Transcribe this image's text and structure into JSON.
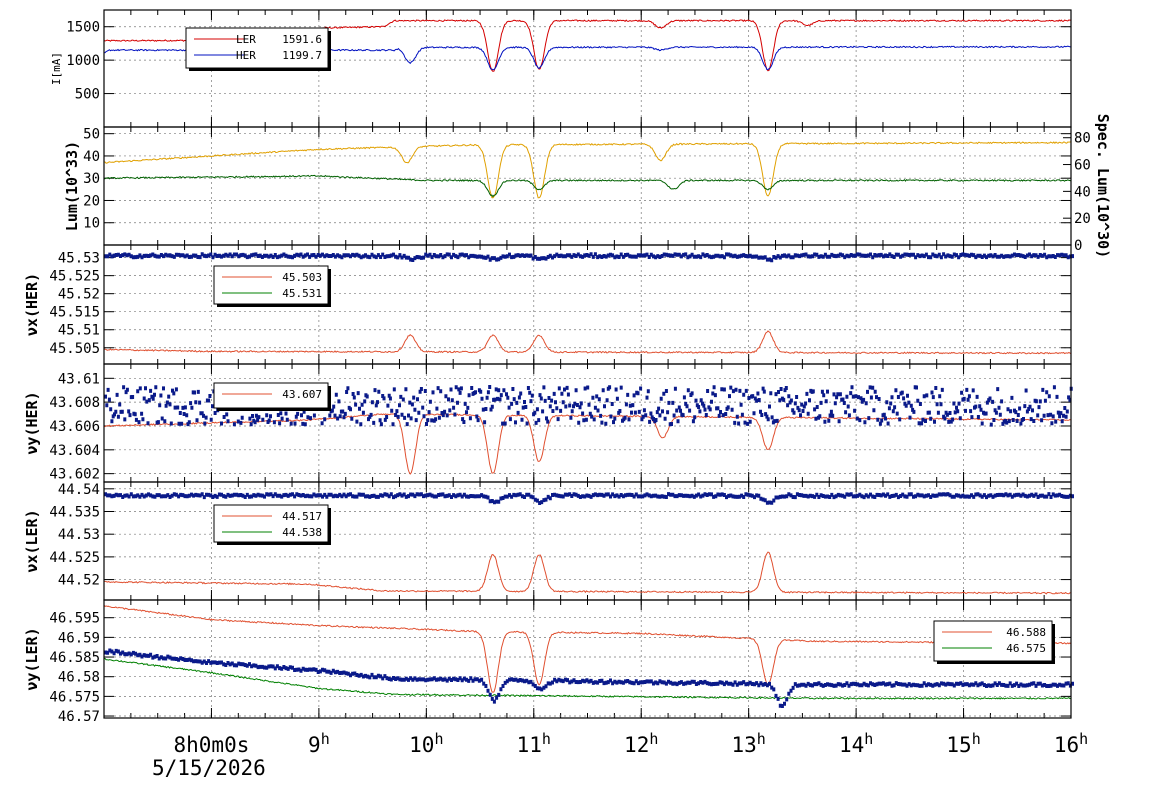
{
  "chart_data": [
    {
      "type": "line",
      "ylabel": "I[mA]",
      "ylim": [
        0,
        1750
      ],
      "yticks": [
        500,
        1000,
        1500
      ],
      "grid": true,
      "legend_placement": "top-left",
      "legend": [
        {
          "name": "LER",
          "value": "1591.6",
          "color": "#d40000"
        },
        {
          "name": "HER",
          "value": "1199.7",
          "color": "#0010c0"
        }
      ],
      "series": [
        {
          "name": "LER",
          "color": "#d40000",
          "base": [
            [
              7.0,
              1290
            ],
            [
              8.9,
              1300
            ],
            [
              9.0,
              1480
            ],
            [
              9.6,
              1500
            ],
            [
              9.7,
              1590
            ],
            [
              16.0,
              1591
            ]
          ],
          "dips": [
            [
              10.62,
              830
            ],
            [
              11.05,
              860
            ],
            [
              12.18,
              1480
            ],
            [
              13.18,
              840
            ],
            [
              13.55,
              1520
            ]
          ]
        },
        {
          "name": "HER",
          "color": "#0010c0",
          "base": [
            [
              7.0,
              1100
            ],
            [
              7.05,
              1150
            ],
            [
              9.7,
              1150
            ],
            [
              9.75,
              1190
            ],
            [
              16.0,
              1199
            ]
          ],
          "dips": [
            [
              9.85,
              960
            ],
            [
              10.62,
              850
            ],
            [
              11.05,
              880
            ],
            [
              12.18,
              1150
            ],
            [
              13.18,
              860
            ]
          ]
        }
      ]
    },
    {
      "type": "line",
      "ylabel": "Lum(10^33)",
      "ylim": [
        0,
        53
      ],
      "yticks": [
        10,
        20,
        30,
        40,
        50
      ],
      "y2label": "Spec. Lum(10^30)",
      "y2ticks": [
        0,
        20,
        40,
        60,
        80
      ],
      "grid": true,
      "series": [
        {
          "name": "",
          "color": "#e0a000",
          "base": [
            [
              7.0,
              37
            ],
            [
              8.0,
              40
            ],
            [
              9.0,
              43
            ],
            [
              10.5,
              45
            ],
            [
              16.0,
              46
            ]
          ],
          "dips": [
            [
              9.82,
              37
            ],
            [
              10.62,
              21
            ],
            [
              11.05,
              21
            ],
            [
              12.18,
              38
            ],
            [
              13.18,
              22
            ]
          ]
        },
        {
          "name": "",
          "color": "#006000",
          "base": [
            [
              7.0,
              30
            ],
            [
              9.0,
              31
            ],
            [
              10.0,
              29
            ],
            [
              16.0,
              29
            ]
          ],
          "dips": [
            [
              10.62,
              22
            ],
            [
              11.05,
              25
            ],
            [
              12.3,
              25
            ],
            [
              13.18,
              25
            ]
          ]
        }
      ]
    },
    {
      "type": "line",
      "ylabel": "νx(HER)",
      "ylim": [
        45.5005,
        45.5335
      ],
      "yticks": [
        45.505,
        45.51,
        45.515,
        45.52,
        45.525,
        45.53
      ],
      "grid": true,
      "legend_placement": "top-left",
      "legend": [
        {
          "name": "",
          "value": "45.503",
          "color": "#e05030"
        },
        {
          "name": "",
          "value": "45.531",
          "color": "#008000"
        }
      ],
      "series": [
        {
          "name": "",
          "color": "#e05030",
          "base": [
            [
              7.0,
              45.5045
            ],
            [
              8.0,
              45.504
            ],
            [
              16.0,
              45.5035
            ]
          ],
          "bumps": [
            [
              9.85,
              45.5085
            ],
            [
              10.62,
              45.5085
            ],
            [
              11.05,
              45.5085
            ],
            [
              13.18,
              45.5095
            ]
          ]
        },
        {
          "name": "",
          "color": "#0a1a8a",
          "base": [
            [
              7.0,
              45.5305
            ],
            [
              16.0,
              45.5305
            ]
          ],
          "dips": [
            [
              9.85,
              45.5295
            ],
            [
              10.62,
              45.5295
            ],
            [
              11.05,
              45.5295
            ],
            [
              13.18,
              45.5295
            ]
          ],
          "markers": true
        }
      ]
    },
    {
      "type": "line",
      "ylabel": "νy(HER)",
      "ylim": [
        43.6013,
        43.6112
      ],
      "yticks": [
        43.602,
        43.604,
        43.606,
        43.608,
        43.61
      ],
      "grid": true,
      "legend_placement": "top-left",
      "legend": [
        {
          "name": "",
          "value": "43.607",
          "color": "#e05030"
        }
      ],
      "series": [
        {
          "name": "",
          "color": "#e05030",
          "base": [
            [
              7.0,
              43.606
            ],
            [
              8.9,
              43.6065
            ],
            [
              9.6,
              43.607
            ],
            [
              16.0,
              43.6065
            ]
          ],
          "dips": [
            [
              9.85,
              43.602
            ],
            [
              10.62,
              43.602
            ],
            [
              11.05,
              43.603
            ],
            [
              12.2,
              43.605
            ],
            [
              13.18,
              43.604
            ]
          ]
        },
        {
          "name": "",
          "color": "#0a1a8a",
          "base": [
            [
              7.0,
              43.6077
            ],
            [
              16.0,
              43.6077
            ]
          ],
          "scatter": true
        }
      ]
    },
    {
      "type": "line",
      "ylabel": "νx(LER)",
      "ylim": [
        44.5155,
        44.5415
      ],
      "yticks": [
        44.52,
        44.525,
        44.53,
        44.535,
        44.54
      ],
      "grid": true,
      "legend_placement": "top-left",
      "legend": [
        {
          "name": "",
          "value": "44.517",
          "color": "#e05030"
        },
        {
          "name": "",
          "value": "44.538",
          "color": "#008000"
        }
      ],
      "series": [
        {
          "name": "",
          "color": "#e05030",
          "base": [
            [
              7.0,
              44.5195
            ],
            [
              8.9,
              44.519
            ],
            [
              9.6,
              44.5175
            ],
            [
              16.0,
              44.517
            ]
          ],
          "bumps": [
            [
              10.62,
              44.5255
            ],
            [
              11.05,
              44.5255
            ],
            [
              13.18,
              44.526
            ]
          ]
        },
        {
          "name": "",
          "color": "#0a1a8a",
          "base": [
            [
              7.0,
              44.5385
            ],
            [
              16.0,
              44.5385
            ]
          ],
          "dips": [
            [
              10.62,
              44.537
            ],
            [
              11.05,
              44.537
            ],
            [
              13.18,
              44.537
            ]
          ],
          "markers": true
        }
      ]
    },
    {
      "type": "line",
      "ylabel": "νy(LER)",
      "ylim": [
        46.5695,
        46.5995
      ],
      "yticks": [
        46.57,
        46.575,
        46.58,
        46.585,
        46.59,
        46.595
      ],
      "grid": true,
      "legend_placement": "top-right",
      "legend": [
        {
          "name": "",
          "value": "46.588",
          "color": "#e05030"
        },
        {
          "name": "",
          "value": "46.575",
          "color": "#008000"
        }
      ],
      "series": [
        {
          "name": "",
          "color": "#e05030",
          "base": [
            [
              7.0,
              46.598
            ],
            [
              8.0,
              46.5945
            ],
            [
              9.0,
              46.593
            ],
            [
              10.5,
              46.5915
            ],
            [
              12.0,
              46.591
            ],
            [
              13.6,
              46.589
            ],
            [
              16.0,
              46.5885
            ]
          ],
          "dips": [
            [
              10.62,
              46.576
            ],
            [
              11.05,
              46.578
            ],
            [
              13.18,
              46.578
            ]
          ]
        },
        {
          "name": "",
          "color": "#008000",
          "base": [
            [
              7.0,
              46.5845
            ],
            [
              8.0,
              46.581
            ],
            [
              9.0,
              46.577
            ],
            [
              9.7,
              46.5755
            ],
            [
              13.6,
              46.5745
            ],
            [
              16.0,
              46.5745
            ]
          ]
        },
        {
          "name": "",
          "color": "#0a1a8a",
          "base": [
            [
              7.0,
              46.5865
            ],
            [
              8.0,
              46.5835
            ],
            [
              9.0,
              46.5815
            ],
            [
              9.7,
              46.5795
            ],
            [
              13.6,
              46.578
            ],
            [
              16.0,
              46.578
            ]
          ],
          "dips": [
            [
              10.62,
              46.574
            ],
            [
              11.05,
              46.577
            ],
            [
              13.3,
              46.5725
            ]
          ],
          "markers": true
        }
      ]
    }
  ],
  "x_axis": {
    "range": [
      7.0,
      16.0
    ],
    "tick_labels": [
      {
        "x": 8.0,
        "label": "8h0m0s"
      },
      {
        "x": 9.0,
        "label": "9h"
      },
      {
        "x": 10.0,
        "label": "10h"
      },
      {
        "x": 11.0,
        "label": "11h"
      },
      {
        "x": 12.0,
        "label": "12h"
      },
      {
        "x": 13.0,
        "label": "13h"
      },
      {
        "x": 14.0,
        "label": "14h"
      },
      {
        "x": 15.0,
        "label": "15h"
      },
      {
        "x": 16.0,
        "label": "16h"
      }
    ],
    "date": "5/15/2026"
  }
}
